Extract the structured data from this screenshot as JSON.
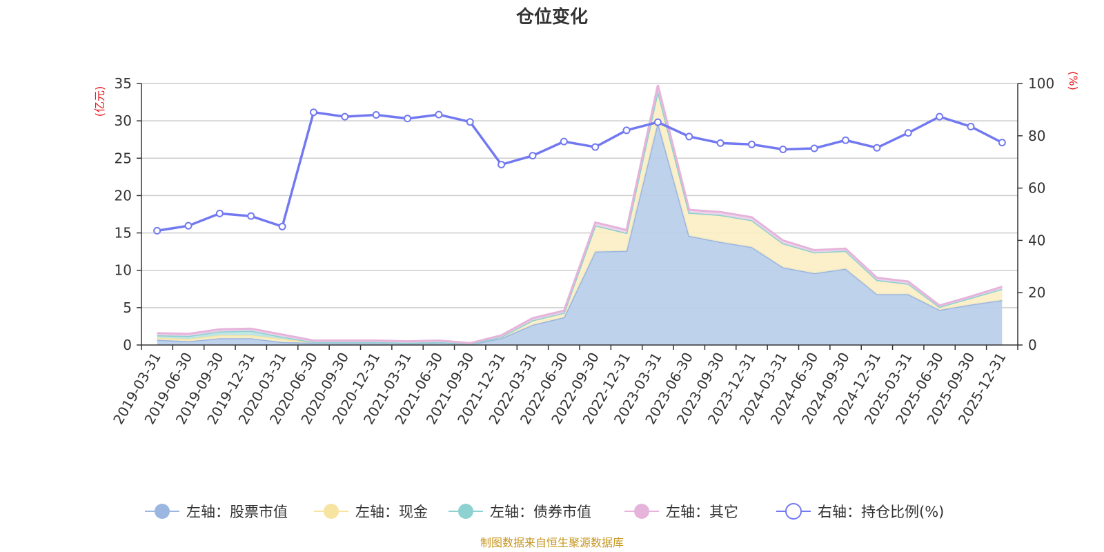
{
  "chart_data": {
    "type": "area",
    "title": "仓位变化",
    "x": [
      "2019-03-31",
      "2019-06-30",
      "2019-09-30",
      "2019-12-31",
      "2020-03-31",
      "2020-06-30",
      "2020-09-30",
      "2020-12-31",
      "2021-03-31",
      "2021-06-30",
      "2021-09-30",
      "2021-12-31",
      "2022-03-31",
      "2022-06-30",
      "2022-09-30",
      "2022-12-31",
      "2023-03-31",
      "2023-06-30",
      "2023-09-30",
      "2023-12-31",
      "2024-03-31",
      "2024-06-30",
      "2024-09-30",
      "2024-12-31",
      "2025-03-31",
      "2025-06-30",
      "2025-09-30",
      "2025-12-31"
    ],
    "left_axis": {
      "unit": "(亿元)",
      "ylim": [
        0,
        35
      ],
      "ticks": [
        0,
        5,
        10,
        15,
        20,
        25,
        30,
        35
      ]
    },
    "right_axis": {
      "unit": "(%)",
      "ylim": [
        0,
        100
      ],
      "ticks": [
        0,
        20,
        40,
        60,
        80,
        100
      ]
    },
    "grid": true,
    "legend_position": "bottom",
    "series": [
      {
        "name": "左轴：股票市值",
        "axis": "left",
        "stack": true,
        "color": "#9bb6e0",
        "fill": "#b8cdea",
        "values": [
          0.7,
          0.5,
          0.9,
          0.9,
          0.4,
          0.3,
          0.3,
          0.3,
          0.2,
          0.3,
          0.1,
          0.9,
          2.7,
          3.7,
          12.5,
          12.6,
          29.8,
          14.6,
          13.8,
          13.1,
          10.4,
          9.6,
          10.2,
          6.8,
          6.8,
          4.7,
          5.4,
          6.0
        ]
      },
      {
        "name": "左轴：现金",
        "axis": "left",
        "stack": true,
        "color": "#f8e4a1",
        "fill": "#fbeec3",
        "values": [
          0.3,
          0.3,
          0.4,
          0.4,
          0.4,
          0.1,
          0.1,
          0.1,
          0.1,
          0.1,
          0.05,
          0.2,
          0.6,
          0.6,
          3.5,
          2.4,
          4.2,
          3.1,
          3.6,
          3.6,
          3.2,
          2.8,
          2.4,
          1.9,
          1.4,
          0.4,
          0.9,
          1.5
        ]
      },
      {
        "name": "左轴：债券市值",
        "axis": "left",
        "stack": true,
        "color": "#8dd1d1",
        "fill": "#b9e3e3",
        "values": [
          0.3,
          0.4,
          0.5,
          0.6,
          0.3,
          0.0,
          0.0,
          0.0,
          0.0,
          0.0,
          0.0,
          0.0,
          0.0,
          0.0,
          0.0,
          0.0,
          0.0,
          0.0,
          0.0,
          0.0,
          0.0,
          0.0,
          0.0,
          0.0,
          0.0,
          0.0,
          0.0,
          0.0
        ]
      },
      {
        "name": "左轴：其它",
        "axis": "left",
        "stack": true,
        "color": "#e6b4db",
        "fill": "#f0d3ea",
        "values": [
          0.3,
          0.3,
          0.3,
          0.3,
          0.3,
          0.2,
          0.2,
          0.2,
          0.2,
          0.2,
          0.1,
          0.2,
          0.3,
          0.3,
          0.4,
          0.4,
          0.8,
          0.4,
          0.4,
          0.4,
          0.4,
          0.3,
          0.3,
          0.3,
          0.3,
          0.2,
          0.2,
          0.3
        ]
      },
      {
        "name": "右轴：持仓比例(%)",
        "axis": "right",
        "stack": false,
        "color": "#7279f0",
        "values": [
          43.7,
          45.6,
          50.3,
          49.3,
          45.3,
          89.0,
          87.3,
          88.0,
          86.6,
          88.1,
          85.3,
          69.0,
          72.4,
          77.8,
          75.7,
          82.1,
          85.2,
          79.7,
          77.2,
          76.7,
          74.8,
          75.2,
          78.3,
          75.4,
          81.1,
          87.3,
          83.5,
          77.4
        ]
      }
    ],
    "source": "制图数据来自恒生聚源数据库"
  }
}
